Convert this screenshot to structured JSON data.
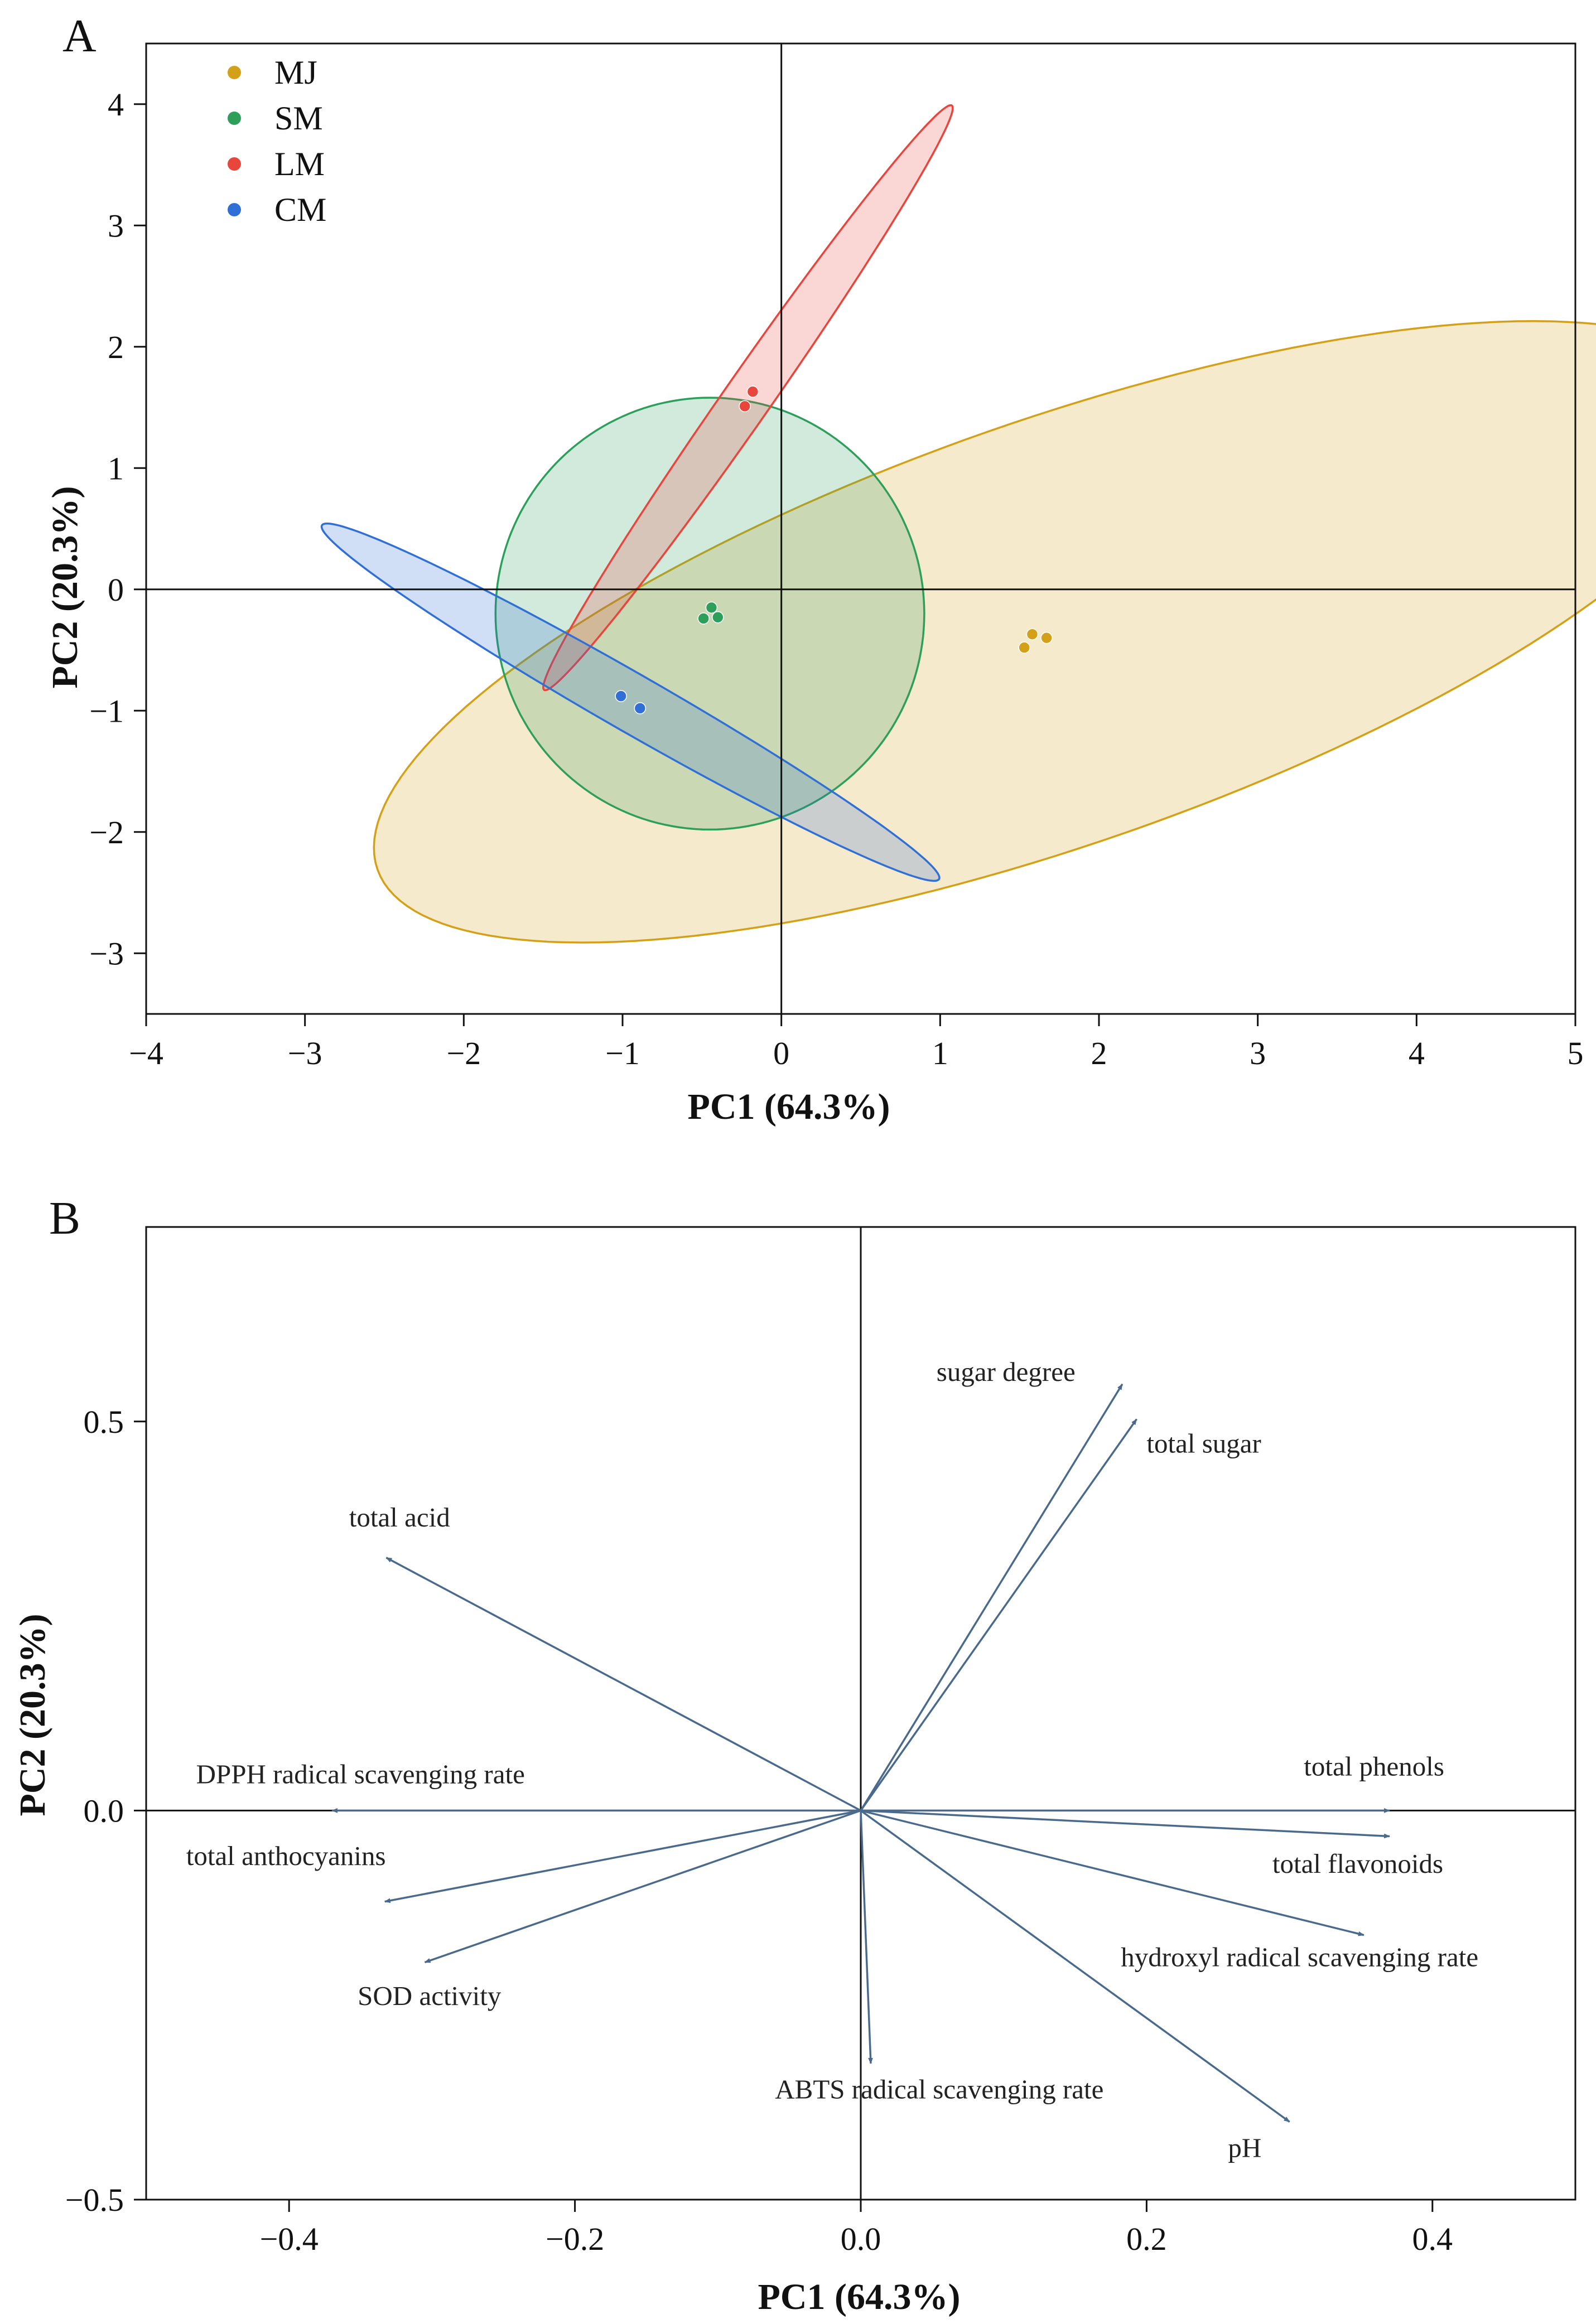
{
  "chart_data": [
    {
      "type": "scatter",
      "panel": "A",
      "xlabel": "PC1 (64.3%)",
      "ylabel": "PC2 (20.3%)",
      "xlim": [
        -4,
        5
      ],
      "ylim": [
        -3.5,
        4.5
      ],
      "xticks": [
        -4,
        -3,
        -2,
        -1,
        0,
        1,
        2,
        3,
        4,
        5
      ],
      "yticks": [
        -3,
        -2,
        -1,
        0,
        1,
        2,
        3,
        4
      ],
      "xtick_labels": [
        "−4",
        "−3",
        "−2",
        "−1",
        "0",
        "1",
        "2",
        "3",
        "4",
        "5"
      ],
      "ytick_labels": [
        "−3",
        "−2",
        "−1",
        "0",
        "1",
        "2",
        "3",
        "4"
      ],
      "legend_position": "top-left",
      "series": [
        {
          "name": "MJ",
          "color": "#d4a017",
          "points": [
            [
              1.53,
              -0.48
            ],
            [
              1.58,
              -0.37
            ],
            [
              1.67,
              -0.4
            ]
          ],
          "ellipse": {
            "center": [
              1.74,
              -0.35
            ],
            "semi_major": 4.72,
            "semi_minor": 1.68,
            "angle_deg": 26
          }
        },
        {
          "name": "SM",
          "color": "#2e9e5b",
          "points": [
            [
              -0.44,
              -0.15
            ],
            [
              -0.49,
              -0.24
            ],
            [
              -0.4,
              -0.23
            ]
          ],
          "ellipse": {
            "center": [
              -0.45,
              -0.2
            ],
            "semi_major": 1.78,
            "semi_minor": 1.35,
            "angle_deg": 90
          }
        },
        {
          "name": "LM",
          "color": "#e8453c",
          "points": [
            [
              -0.18,
              1.63
            ],
            [
              -0.23,
              1.51
            ]
          ],
          "ellipse": {
            "center": [
              -0.21,
              1.58
            ],
            "semi_major": 2.73,
            "semi_minor": 0.16,
            "angle_deg": 62
          }
        },
        {
          "name": "CM",
          "color": "#2f6fd6",
          "points": [
            [
              -1.01,
              -0.88
            ],
            [
              -0.89,
              -0.98
            ]
          ],
          "ellipse": {
            "center": [
              -0.95,
              -0.93
            ],
            "semi_major": 2.43,
            "semi_minor": 0.22,
            "angle_deg": -37
          }
        }
      ]
    },
    {
      "type": "biplot",
      "panel": "B",
      "xlabel": "PC1 (64.3%)",
      "ylabel": "PC2 (20.3%)",
      "xlim": [
        -0.5,
        0.5
      ],
      "ylim": [
        -0.5,
        0.75
      ],
      "xticks": [
        -0.4,
        -0.2,
        0.0,
        0.2,
        0.4
      ],
      "yticks": [
        -0.5,
        0.0,
        0.5
      ],
      "xtick_labels": [
        "−0.4",
        "−0.2",
        "0.0",
        "0.2",
        "0.4"
      ],
      "ytick_labels": [
        "−0.5",
        "0.0",
        "0.5"
      ],
      "arrow_color": "#4a6a8c",
      "vectors": [
        {
          "name": "sugar degree",
          "x": 0.183,
          "y": 0.548,
          "label_at": [
            0.053,
            0.552
          ],
          "anchor": "start"
        },
        {
          "name": "total sugar",
          "x": 0.193,
          "y": 0.503,
          "label_at": [
            0.2,
            0.46
          ],
          "anchor": "start"
        },
        {
          "name": "total acid",
          "x": -0.332,
          "y": 0.325,
          "label_at": [
            -0.358,
            0.365
          ],
          "anchor": "start"
        },
        {
          "name": "DPPH  radical scavenging rate",
          "x": -0.37,
          "y": 0.0,
          "label_at": [
            -0.465,
            0.035
          ],
          "anchor": "start"
        },
        {
          "name": "total anthocyanins",
          "x": -0.333,
          "y": -0.117,
          "label_at": [
            -0.472,
            -0.07
          ],
          "anchor": "start"
        },
        {
          "name": "SOD activity",
          "x": -0.305,
          "y": -0.195,
          "label_at": [
            -0.352,
            -0.25
          ],
          "anchor": "start"
        },
        {
          "name": "ABTS radical scavenging rate",
          "x": 0.007,
          "y": -0.325,
          "label_at": [
            -0.06,
            -0.37
          ],
          "anchor": "start"
        },
        {
          "name": "pH",
          "x": 0.3,
          "y": -0.4,
          "label_at": [
            0.257,
            -0.445
          ],
          "anchor": "start"
        },
        {
          "name": "total phenols",
          "x": 0.37,
          "y": 0.0,
          "label_at": [
            0.31,
            0.045
          ],
          "anchor": "start"
        },
        {
          "name": "total flavonoids",
          "x": 0.37,
          "y": -0.033,
          "label_at": [
            0.288,
            -0.08
          ],
          "anchor": "start"
        },
        {
          "name": "hydroxyl radical scavenging rate",
          "x": 0.352,
          "y": -0.16,
          "label_at": [
            0.182,
            -0.2
          ],
          "anchor": "start"
        }
      ]
    }
  ]
}
